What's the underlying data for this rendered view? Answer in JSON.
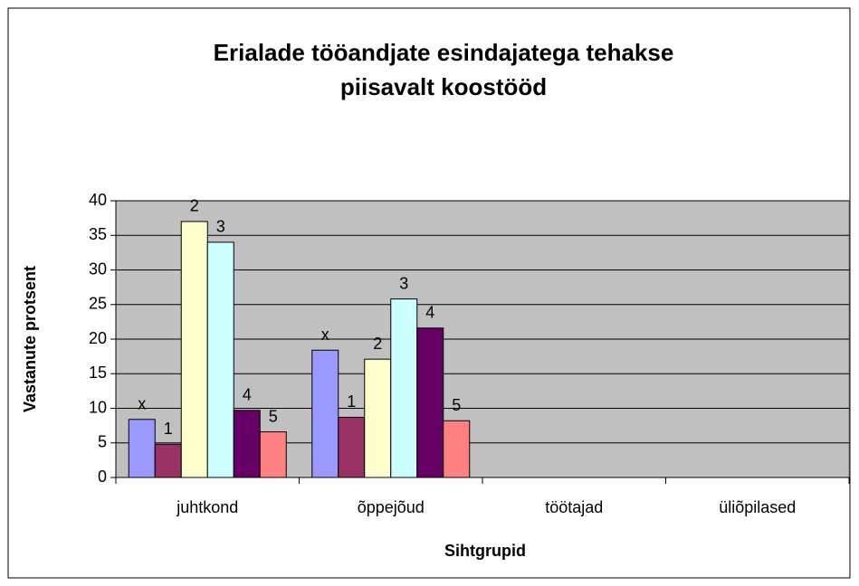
{
  "chart_data": {
    "type": "bar",
    "title": [
      "Erialade tööandjate esindajatega tehakse",
      "piisavalt koostööd"
    ],
    "x_label": "Sihtgrupid",
    "y_label": "Vastanute protsent",
    "categories": [
      "juhtkond",
      "õppejõud",
      "töötajad",
      "üliõpilased"
    ],
    "series": [
      {
        "name": "x",
        "color": "#9999ff",
        "values": [
          8.4,
          18.4,
          null,
          null
        ]
      },
      {
        "name": "1",
        "color": "#993366",
        "values": [
          4.8,
          8.7,
          null,
          null
        ]
      },
      {
        "name": "2",
        "color": "#ffffcc",
        "values": [
          37,
          17.1,
          null,
          null
        ]
      },
      {
        "name": "3",
        "color": "#ccffff",
        "values": [
          34,
          25.8,
          null,
          null
        ]
      },
      {
        "name": "4",
        "color": "#660066",
        "values": [
          9.7,
          21.6,
          null,
          null
        ]
      },
      {
        "name": "5",
        "color": "#ff8080",
        "values": [
          6.6,
          8.2,
          null,
          null
        ]
      }
    ],
    "ylim": [
      0,
      40
    ],
    "yticks": [
      0,
      5,
      10,
      15,
      20,
      25,
      30,
      35,
      40
    ],
    "grid": true
  }
}
